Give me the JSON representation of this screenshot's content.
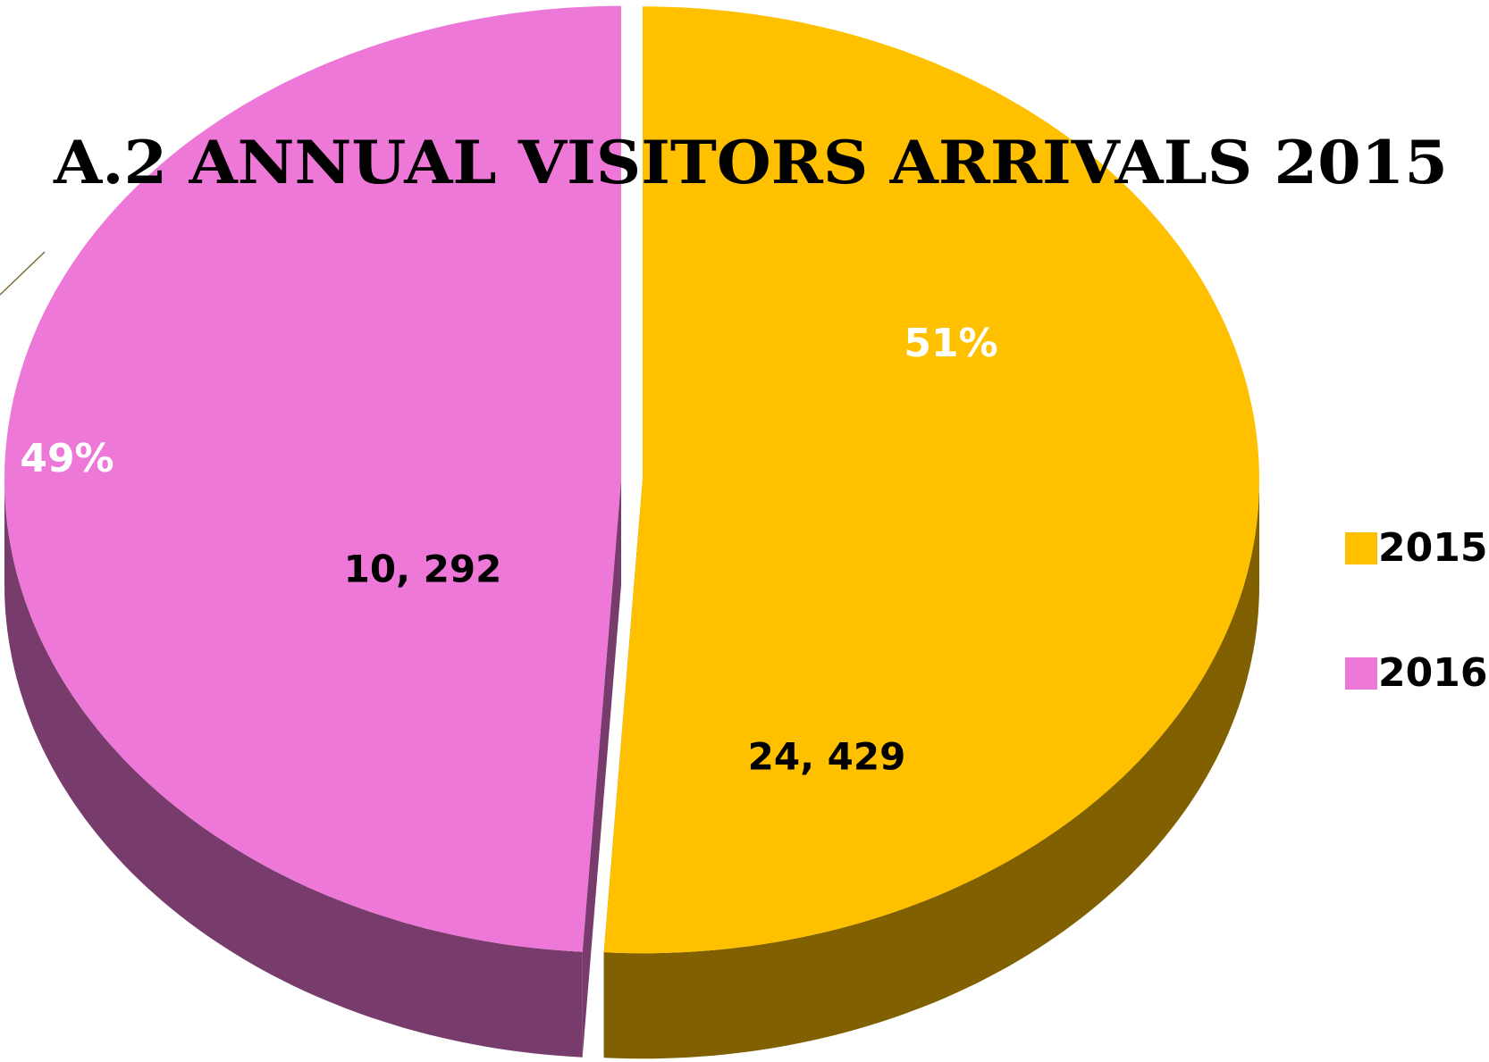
{
  "chart_data": {
    "type": "pie",
    "title": "A.2 ANNUAL VISITORS ARRIVALS 2015",
    "categories": [
      "2015",
      "2016"
    ],
    "values": [
      51,
      49
    ],
    "value_labels": [
      "51%",
      "49%"
    ],
    "colors": [
      "#FFC000",
      "#EE78D8"
    ],
    "annotations": [
      "24, 429",
      "10, 292"
    ],
    "legend": "right"
  }
}
